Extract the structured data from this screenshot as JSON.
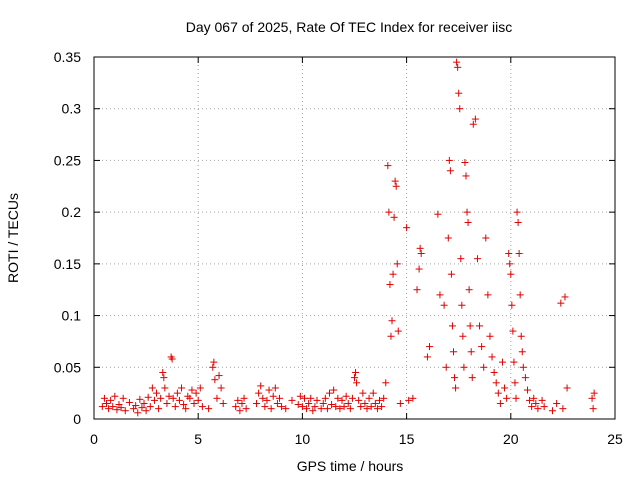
{
  "chart_data": {
    "type": "scatter",
    "title": "Day 067 of 2025, Rate Of TEC Index for receiver iisc",
    "xlabel": "GPS time / hours",
    "ylabel": "ROTI / TECUs",
    "xlim": [
      0,
      25
    ],
    "ylim": [
      0,
      0.35
    ],
    "xticks": [
      0,
      5,
      10,
      15,
      20,
      25
    ],
    "xtick_labels": [
      "0",
      "5",
      "10",
      "15",
      "20",
      "25"
    ],
    "yticks": [
      0,
      0.05,
      0.1,
      0.15,
      0.2,
      0.25,
      0.3,
      0.35
    ],
    "ytick_labels": [
      "0",
      "0.05",
      "0.1",
      "0.15",
      "0.2",
      "0.25",
      "0.3",
      "0.35"
    ],
    "grid": true,
    "marker": "+",
    "color": "#e00000",
    "series": [
      {
        "name": "ROTI",
        "points": [
          [
            0.4,
            0.012
          ],
          [
            0.5,
            0.02
          ],
          [
            0.6,
            0.015
          ],
          [
            0.7,
            0.01
          ],
          [
            0.8,
            0.018
          ],
          [
            0.9,
            0.012
          ],
          [
            1.0,
            0.022
          ],
          [
            1.1,
            0.009
          ],
          [
            1.2,
            0.014
          ],
          [
            1.3,
            0.011
          ],
          [
            1.4,
            0.02
          ],
          [
            1.5,
            0.008
          ],
          [
            1.7,
            0.016
          ],
          [
            1.9,
            0.01
          ],
          [
            2.0,
            0.013
          ],
          [
            2.1,
            0.006
          ],
          [
            2.2,
            0.019
          ],
          [
            2.3,
            0.011
          ],
          [
            2.4,
            0.015
          ],
          [
            2.5,
            0.008
          ],
          [
            2.6,
            0.021
          ],
          [
            2.7,
            0.012
          ],
          [
            2.8,
            0.03
          ],
          [
            2.9,
            0.018
          ],
          [
            3.0,
            0.025
          ],
          [
            3.1,
            0.01
          ],
          [
            3.2,
            0.02
          ],
          [
            3.3,
            0.045
          ],
          [
            3.35,
            0.04
          ],
          [
            3.4,
            0.03
          ],
          [
            3.5,
            0.015
          ],
          [
            3.6,
            0.022
          ],
          [
            3.7,
            0.06
          ],
          [
            3.75,
            0.058
          ],
          [
            3.8,
            0.02
          ],
          [
            3.9,
            0.012
          ],
          [
            4.0,
            0.025
          ],
          [
            4.1,
            0.018
          ],
          [
            4.2,
            0.03
          ],
          [
            4.3,
            0.014
          ],
          [
            4.4,
            0.01
          ],
          [
            4.5,
            0.022
          ],
          [
            4.6,
            0.02
          ],
          [
            4.7,
            0.028
          ],
          [
            4.8,
            0.015
          ],
          [
            4.9,
            0.025
          ],
          [
            5.0,
            0.018
          ],
          [
            5.1,
            0.03
          ],
          [
            5.2,
            0.012
          ],
          [
            5.5,
            0.01
          ],
          [
            5.7,
            0.05
          ],
          [
            5.75,
            0.055
          ],
          [
            5.8,
            0.038
          ],
          [
            5.9,
            0.02
          ],
          [
            6.0,
            0.042
          ],
          [
            6.1,
            0.03
          ],
          [
            6.2,
            0.015
          ],
          [
            6.8,
            0.012
          ],
          [
            6.9,
            0.018
          ],
          [
            7.0,
            0.008
          ],
          [
            7.1,
            0.015
          ],
          [
            7.2,
            0.02
          ],
          [
            7.3,
            0.01
          ],
          [
            7.8,
            0.015
          ],
          [
            7.9,
            0.025
          ],
          [
            8.0,
            0.032
          ],
          [
            8.1,
            0.02
          ],
          [
            8.2,
            0.012
          ],
          [
            8.3,
            0.018
          ],
          [
            8.4,
            0.028
          ],
          [
            8.5,
            0.01
          ],
          [
            8.6,
            0.022
          ],
          [
            8.7,
            0.03
          ],
          [
            8.8,
            0.015
          ],
          [
            8.9,
            0.02
          ],
          [
            9.0,
            0.012
          ],
          [
            9.2,
            0.01
          ],
          [
            9.5,
            0.018
          ],
          [
            9.8,
            0.014
          ],
          [
            9.9,
            0.022
          ],
          [
            10.0,
            0.012
          ],
          [
            10.1,
            0.02
          ],
          [
            10.2,
            0.01
          ],
          [
            10.3,
            0.015
          ],
          [
            10.4,
            0.02
          ],
          [
            10.5,
            0.008
          ],
          [
            10.6,
            0.012
          ],
          [
            10.7,
            0.018
          ],
          [
            10.9,
            0.01
          ],
          [
            11.0,
            0.015
          ],
          [
            11.1,
            0.02
          ],
          [
            11.2,
            0.01
          ],
          [
            11.3,
            0.025
          ],
          [
            11.4,
            0.014
          ],
          [
            11.5,
            0.028
          ],
          [
            11.6,
            0.012
          ],
          [
            11.7,
            0.02
          ],
          [
            11.8,
            0.01
          ],
          [
            11.9,
            0.018
          ],
          [
            12.0,
            0.012
          ],
          [
            12.1,
            0.022
          ],
          [
            12.2,
            0.015
          ],
          [
            12.3,
            0.01
          ],
          [
            12.4,
            0.02
          ],
          [
            12.5,
            0.04
          ],
          [
            12.55,
            0.045
          ],
          [
            12.6,
            0.035
          ],
          [
            12.7,
            0.018
          ],
          [
            12.8,
            0.012
          ],
          [
            12.9,
            0.025
          ],
          [
            13.0,
            0.015
          ],
          [
            13.1,
            0.01
          ],
          [
            13.2,
            0.02
          ],
          [
            13.3,
            0.012
          ],
          [
            13.4,
            0.025
          ],
          [
            13.5,
            0.015
          ],
          [
            13.6,
            0.01
          ],
          [
            13.7,
            0.018
          ],
          [
            13.8,
            0.012
          ],
          [
            13.9,
            0.02
          ],
          [
            14.0,
            0.035
          ],
          [
            14.1,
            0.245
          ],
          [
            14.15,
            0.2
          ],
          [
            14.2,
            0.13
          ],
          [
            14.25,
            0.08
          ],
          [
            14.3,
            0.095
          ],
          [
            14.35,
            0.14
          ],
          [
            14.4,
            0.195
          ],
          [
            14.45,
            0.23
          ],
          [
            14.5,
            0.225
          ],
          [
            14.55,
            0.15
          ],
          [
            14.6,
            0.085
          ],
          [
            14.7,
            0.015
          ],
          [
            15.0,
            0.185
          ],
          [
            15.1,
            0.018
          ],
          [
            15.3,
            0.02
          ],
          [
            15.5,
            0.125
          ],
          [
            15.6,
            0.145
          ],
          [
            15.65,
            0.165
          ],
          [
            15.7,
            0.16
          ],
          [
            16.0,
            0.06
          ],
          [
            16.1,
            0.07
          ],
          [
            16.5,
            0.198
          ],
          [
            16.6,
            0.12
          ],
          [
            16.8,
            0.11
          ],
          [
            16.9,
            0.05
          ],
          [
            17.0,
            0.175
          ],
          [
            17.05,
            0.25
          ],
          [
            17.1,
            0.24
          ],
          [
            17.15,
            0.14
          ],
          [
            17.2,
            0.09
          ],
          [
            17.25,
            0.065
          ],
          [
            17.3,
            0.04
          ],
          [
            17.35,
            0.03
          ],
          [
            17.4,
            0.345
          ],
          [
            17.45,
            0.34
          ],
          [
            17.5,
            0.315
          ],
          [
            17.55,
            0.3
          ],
          [
            17.6,
            0.155
          ],
          [
            17.65,
            0.11
          ],
          [
            17.7,
            0.08
          ],
          [
            17.75,
            0.05
          ],
          [
            17.8,
            0.248
          ],
          [
            17.85,
            0.235
          ],
          [
            17.9,
            0.2
          ],
          [
            17.95,
            0.19
          ],
          [
            18.0,
            0.125
          ],
          [
            18.05,
            0.09
          ],
          [
            18.1,
            0.065
          ],
          [
            18.15,
            0.04
          ],
          [
            18.2,
            0.285
          ],
          [
            18.3,
            0.29
          ],
          [
            18.4,
            0.155
          ],
          [
            18.5,
            0.09
          ],
          [
            18.6,
            0.07
          ],
          [
            18.7,
            0.05
          ],
          [
            18.8,
            0.175
          ],
          [
            18.9,
            0.12
          ],
          [
            19.0,
            0.08
          ],
          [
            19.1,
            0.06
          ],
          [
            19.2,
            0.045
          ],
          [
            19.3,
            0.035
          ],
          [
            19.4,
            0.025
          ],
          [
            19.5,
            0.015
          ],
          [
            19.6,
            0.055
          ],
          [
            19.7,
            0.03
          ],
          [
            19.8,
            0.02
          ],
          [
            19.9,
            0.16
          ],
          [
            19.95,
            0.15
          ],
          [
            20.0,
            0.14
          ],
          [
            20.05,
            0.11
          ],
          [
            20.1,
            0.085
          ],
          [
            20.15,
            0.055
          ],
          [
            20.2,
            0.035
          ],
          [
            20.25,
            0.02
          ],
          [
            20.3,
            0.2
          ],
          [
            20.35,
            0.19
          ],
          [
            20.4,
            0.16
          ],
          [
            20.45,
            0.12
          ],
          [
            20.5,
            0.08
          ],
          [
            20.55,
            0.065
          ],
          [
            20.6,
            0.05
          ],
          [
            20.7,
            0.04
          ],
          [
            20.8,
            0.028
          ],
          [
            20.9,
            0.018
          ],
          [
            21.0,
            0.012
          ],
          [
            21.1,
            0.02
          ],
          [
            21.2,
            0.015
          ],
          [
            21.3,
            0.01
          ],
          [
            21.5,
            0.018
          ],
          [
            21.6,
            0.012
          ],
          [
            22.0,
            0.008
          ],
          [
            22.2,
            0.015
          ],
          [
            22.4,
            0.112
          ],
          [
            22.5,
            0.01
          ],
          [
            22.6,
            0.118
          ],
          [
            22.7,
            0.03
          ],
          [
            23.9,
            0.02
          ],
          [
            23.95,
            0.01
          ],
          [
            24.0,
            0.025
          ]
        ]
      }
    ]
  }
}
